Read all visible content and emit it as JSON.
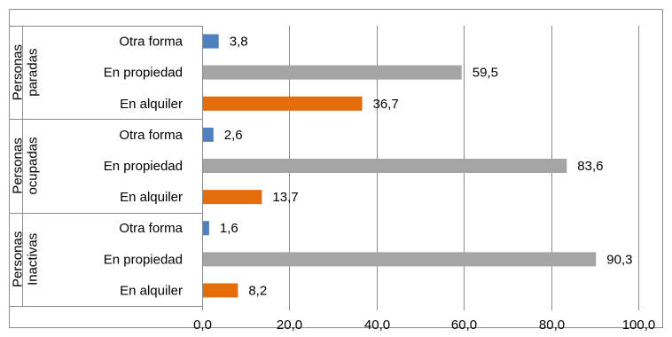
{
  "chart_data": {
    "type": "bar",
    "orientation": "horizontal",
    "groups": [
      {
        "label": "Personas paradas",
        "label_lines": [
          "Personas",
          "paradas"
        ],
        "bars": [
          {
            "category": "Otra forma",
            "value": 3.8,
            "label": "3,8",
            "color": "#4f81bd"
          },
          {
            "category": "En propiedad",
            "value": 59.5,
            "label": "59,5",
            "color": "#a5a5a5"
          },
          {
            "category": "En alquiler",
            "value": 36.7,
            "label": "36,7",
            "color": "#e46c0a"
          }
        ]
      },
      {
        "label": "Personas ocupadas",
        "label_lines": [
          "Personas",
          "ocupadas"
        ],
        "bars": [
          {
            "category": "Otra forma",
            "value": 2.6,
            "label": "2,6",
            "color": "#4f81bd"
          },
          {
            "category": "En propiedad",
            "value": 83.6,
            "label": "83,6",
            "color": "#a5a5a5"
          },
          {
            "category": "En alquiler",
            "value": 13.7,
            "label": "13,7",
            "color": "#e46c0a"
          }
        ]
      },
      {
        "label": "Personas Inactivas",
        "label_lines": [
          "Personas",
          "Inactivas"
        ],
        "bars": [
          {
            "category": "Otra forma",
            "value": 1.6,
            "label": "1,6",
            "color": "#4f81bd"
          },
          {
            "category": "En propiedad",
            "value": 90.3,
            "label": "90,3",
            "color": "#a5a5a5"
          },
          {
            "category": "En alquiler",
            "value": 8.2,
            "label": "8,2",
            "color": "#e46c0a"
          }
        ]
      }
    ],
    "x_ticks": [
      {
        "value": 0,
        "label": "0,0"
      },
      {
        "value": 20,
        "label": "20,0"
      },
      {
        "value": 40,
        "label": "40,0"
      },
      {
        "value": 60,
        "label": "60,0"
      },
      {
        "value": 80,
        "label": "80,0"
      },
      {
        "value": 100,
        "label": "100,0"
      }
    ],
    "xlim": [
      0,
      100
    ],
    "grid": true,
    "legend": "none"
  }
}
